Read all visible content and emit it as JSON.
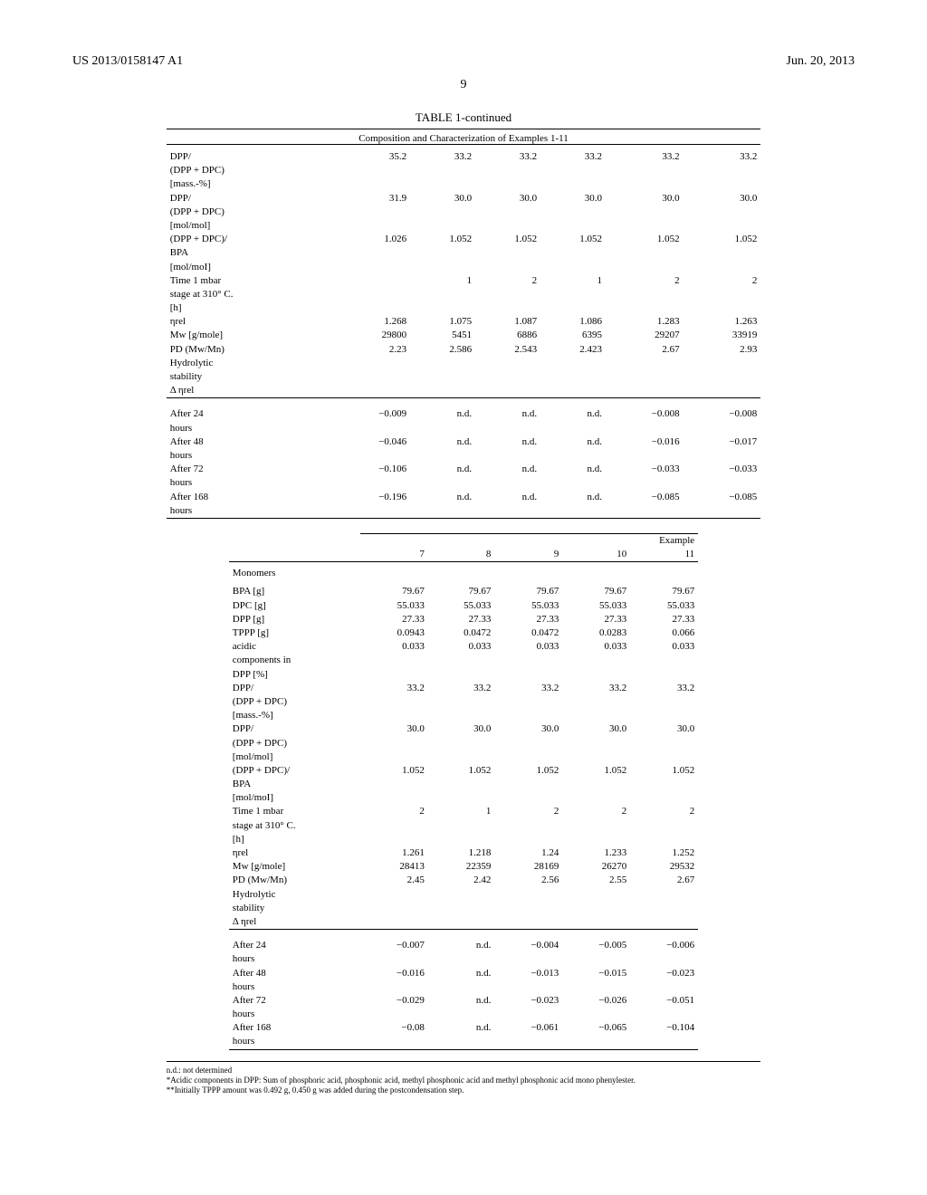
{
  "header": {
    "doc_id": "US 2013/0158147 A1",
    "date": "Jun. 20, 2013",
    "page_number": "9"
  },
  "table1": {
    "title": "TABLE 1-continued",
    "subtitle": "Composition and Characterization of Examples 1-11",
    "rows": [
      {
        "label": "DPP/\n(DPP + DPC)\n[mass.-%]",
        "v": [
          "35.2",
          "33.2",
          "33.2",
          "33.2",
          "33.2",
          "33.2"
        ]
      },
      {
        "label": "DPP/\n(DPP + DPC)\n[mol/mol]",
        "v": [
          "31.9",
          "30.0",
          "30.0",
          "30.0",
          "30.0",
          "30.0"
        ]
      },
      {
        "label": "(DPP + DPC)/\nBPA\n[mol/moI]",
        "v": [
          "1.026",
          "1.052",
          "1.052",
          "1.052",
          "1.052",
          "1.052"
        ]
      },
      {
        "label": "Time 1 mbar\nstage at 310° C.\n[h]",
        "v": [
          "",
          "1",
          "2",
          "1",
          "2",
          "2"
        ]
      },
      {
        "label": "ηrel",
        "v": [
          "1.268",
          "1.075",
          "1.087",
          "1.086",
          "1.283",
          "1.263"
        ]
      },
      {
        "label": "Mw [g/mole]",
        "v": [
          "29800",
          "5451",
          "6886",
          "6395",
          "29207",
          "33919"
        ]
      },
      {
        "label": "PD (Mw/Mn)",
        "v": [
          "2.23",
          "2.586",
          "2.543",
          "2.423",
          "2.67",
          "2.93"
        ]
      },
      {
        "label": "Hydrolytic\nstability\nΔ ηrel",
        "v": [
          "",
          "",
          "",
          "",
          "",
          ""
        ]
      }
    ],
    "rows2": [
      {
        "label": "After 24\nhours",
        "v": [
          "−0.009",
          "n.d.",
          "n.d.",
          "n.d.",
          "−0.008",
          "−0.008"
        ]
      },
      {
        "label": "After 48\nhours",
        "v": [
          "−0.046",
          "n.d.",
          "n.d.",
          "n.d.",
          "−0.016",
          "−0.017"
        ]
      },
      {
        "label": "After 72\nhours",
        "v": [
          "−0.106",
          "n.d.",
          "n.d.",
          "n.d.",
          "−0.033",
          "−0.033"
        ]
      },
      {
        "label": "After 168\nhours",
        "v": [
          "−0.196",
          "n.d.",
          "n.d.",
          "n.d.",
          "−0.085",
          "−0.085"
        ]
      }
    ]
  },
  "table2": {
    "example_header": "Example",
    "col_heads": [
      "7",
      "8",
      "9",
      "10",
      "11"
    ],
    "monomers_label": "Monomers",
    "rows": [
      {
        "label": "BPA [g]",
        "v": [
          "79.67",
          "79.67",
          "79.67",
          "79.67",
          "79.67"
        ]
      },
      {
        "label": "DPC [g]",
        "v": [
          "55.033",
          "55.033",
          "55.033",
          "55.033",
          "55.033"
        ]
      },
      {
        "label": "DPP [g]",
        "v": [
          "27.33",
          "27.33",
          "27.33",
          "27.33",
          "27.33"
        ]
      },
      {
        "label": "TPPP [g]",
        "v": [
          "0.0943",
          "0.0472",
          "0.0472",
          "0.0283",
          "0.066"
        ]
      },
      {
        "label": "acidic\ncomponents in\nDPP [%]",
        "v": [
          "0.033",
          "0.033",
          "0.033",
          "0.033",
          "0.033"
        ]
      },
      {
        "label": "DPP/\n(DPP + DPC)\n[mass.-%]",
        "v": [
          "33.2",
          "33.2",
          "33.2",
          "33.2",
          "33.2"
        ]
      },
      {
        "label": "DPP/\n(DPP + DPC)\n[mol/mol]",
        "v": [
          "30.0",
          "30.0",
          "30.0",
          "30.0",
          "30.0"
        ]
      },
      {
        "label": "(DPP + DPC)/\nBPA\n[mol/moI]",
        "v": [
          "1.052",
          "1.052",
          "1.052",
          "1.052",
          "1.052"
        ]
      },
      {
        "label": "Time 1 mbar\nstage at 310° C.\n[h]",
        "v": [
          "2",
          "1",
          "2",
          "2",
          "2"
        ]
      },
      {
        "label": "ηrel",
        "v": [
          "1.261",
          "1.218",
          "1.24",
          "1.233",
          "1.252"
        ]
      },
      {
        "label": "Mw [g/mole]",
        "v": [
          "28413",
          "22359",
          "28169",
          "26270",
          "29532"
        ]
      },
      {
        "label": "PD (Mw/Mn)",
        "v": [
          "2.45",
          "2.42",
          "2.56",
          "2.55",
          "2.67"
        ]
      },
      {
        "label": "Hydrolytic\nstability\nΔ ηrel",
        "v": [
          "",
          "",
          "",
          "",
          ""
        ]
      }
    ],
    "rows2": [
      {
        "label": "After 24\nhours",
        "v": [
          "−0.007",
          "n.d.",
          "−0.004",
          "−0.005",
          "−0.006"
        ]
      },
      {
        "label": "After 48\nhours",
        "v": [
          "−0.016",
          "n.d.",
          "−0.013",
          "−0.015",
          "−0.023"
        ]
      },
      {
        "label": "After 72\nhours",
        "v": [
          "−0.029",
          "n.d.",
          "−0.023",
          "−0.026",
          "−0.051"
        ]
      },
      {
        "label": "After 168\nhours",
        "v": [
          "−0.08",
          "n.d.",
          "−0.061",
          "−0.065",
          "−0.104"
        ]
      }
    ]
  },
  "footnotes": {
    "f1": "n.d.: not determined",
    "f2": "*Acidic components in DPP: Sum of phosphoric acid, phosphonic acid, methyl phosphonic acid and methyl phosphonic acid mono phenylester.",
    "f3": "**Initially TPPP amount was 0.492 g, 0.450 g was added during the postcondensation step."
  }
}
